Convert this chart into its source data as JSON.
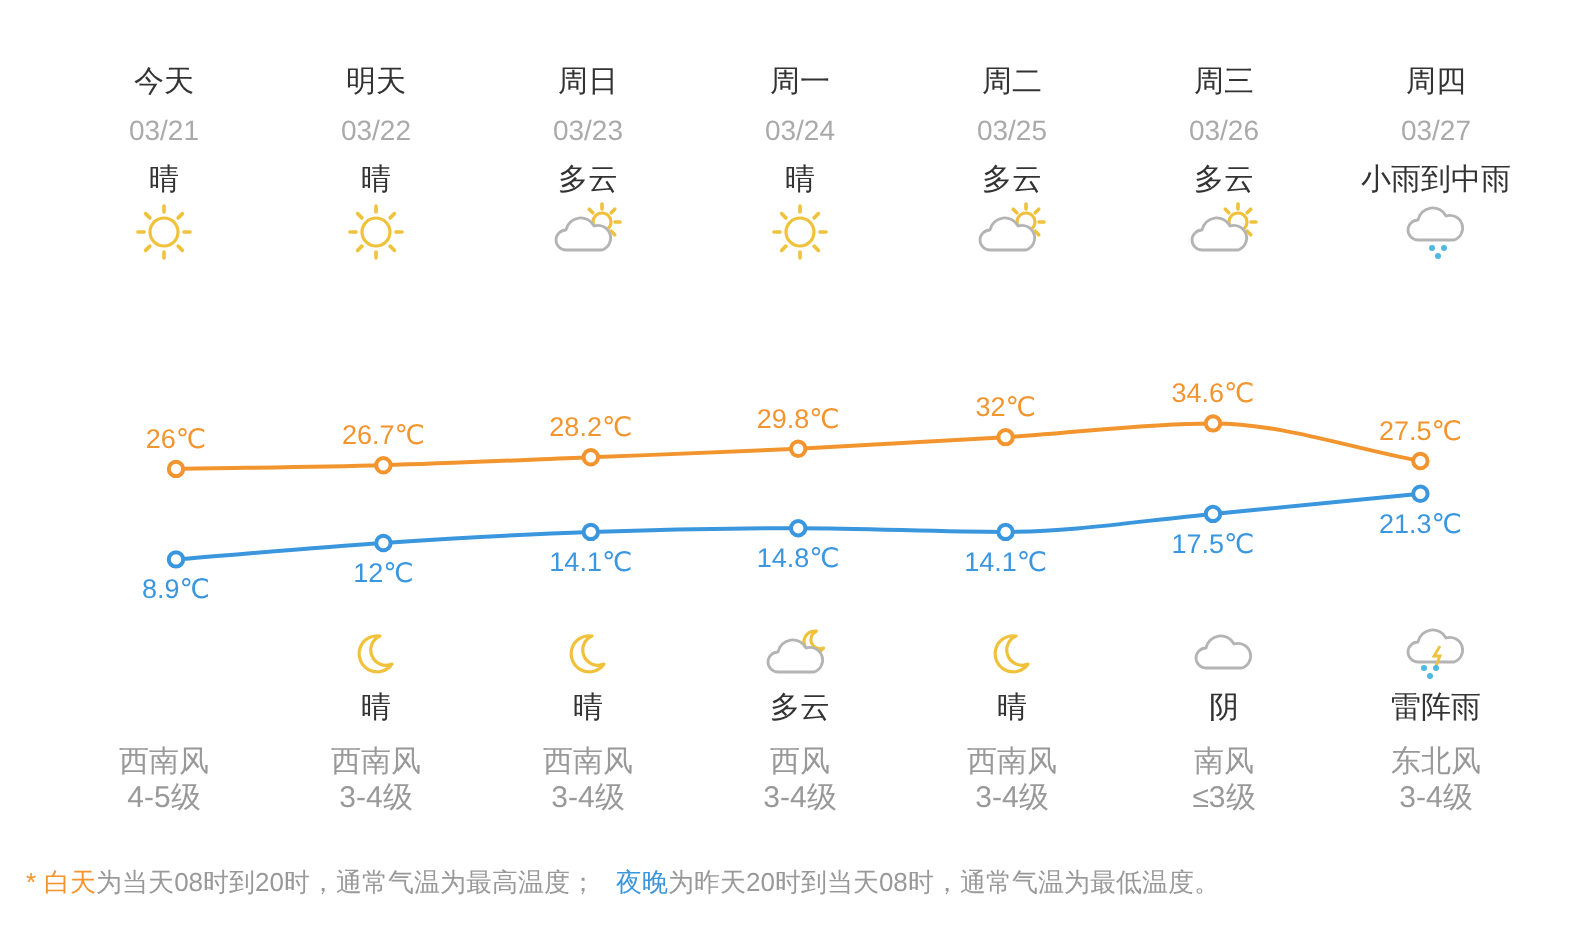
{
  "chart_data": {
    "type": "line",
    "categories": [
      "今天",
      "明天",
      "周日",
      "周一",
      "周二",
      "周三",
      "周四"
    ],
    "series": [
      {
        "name": "白天",
        "color": "#f2952f",
        "values": [
          26,
          26.7,
          28.2,
          29.8,
          32,
          34.6,
          27.5
        ],
        "value_labels": [
          "26℃",
          "26.7℃",
          "28.2℃",
          "29.8℃",
          "32℃",
          "34.6℃",
          "27.5℃"
        ]
      },
      {
        "name": "夜晚",
        "color": "#3a96dd",
        "values": [
          8.9,
          12,
          14.1,
          14.8,
          14.1,
          17.5,
          21.3
        ],
        "value_labels": [
          "8.9℃",
          "12℃",
          "14.1℃",
          "14.8℃",
          "14.1℃",
          "17.5℃",
          "21.3℃"
        ]
      }
    ],
    "marker": "circle",
    "line_style": "solid",
    "tick_labels": "x",
    "annotations": [
      "03/21",
      "03/22",
      "03/23",
      "03/24",
      "03/25",
      "03/26",
      "03/27",
      "晴",
      "晴",
      "多云",
      "晴",
      "多云",
      "多云",
      "小雨到中雨",
      "晴",
      "晴",
      "多云",
      "晴",
      "阴",
      "雷阵雨",
      "西南风",
      "西南风",
      "西南风",
      "西风",
      "西南风",
      "南风",
      "东北风",
      "4-5级",
      "3-4级",
      "3-4级",
      "3-4级",
      "3-4级",
      "≤3级",
      "3-4级",
      "*",
      "为当天08时到20时，通常气温为最高温度；",
      "为昨天20时到当天08时，通常气温为最低温度。"
    ]
  }
}
